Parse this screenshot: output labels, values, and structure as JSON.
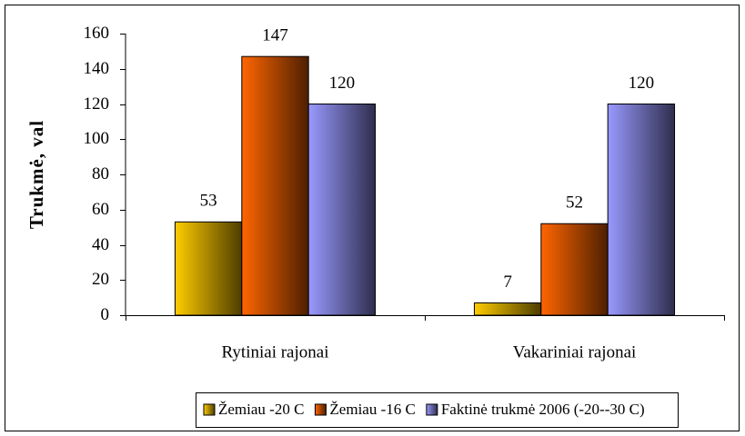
{
  "chart_data": {
    "type": "bar",
    "ylabel": "Trukmė, val",
    "categories": [
      "Rytiniai rajonai",
      "Vakariniai rajonai"
    ],
    "series": [
      {
        "name": "Žemiau -20 C",
        "color": "#ffcc00",
        "values": [
          53,
          7
        ]
      },
      {
        "name": "Žemiau -16 C",
        "color": "#ff6600",
        "values": [
          147,
          52
        ]
      },
      {
        "name": "Faktinė trukmė 2006 (-20--30 C)",
        "color": "#9999ff",
        "values": [
          120,
          120
        ]
      }
    ],
    "ylim": [
      0,
      160
    ],
    "yticks": [
      0,
      20,
      40,
      60,
      80,
      100,
      120,
      140,
      160
    ],
    "grid": false,
    "legend": "bottom",
    "annotation": "`"
  }
}
